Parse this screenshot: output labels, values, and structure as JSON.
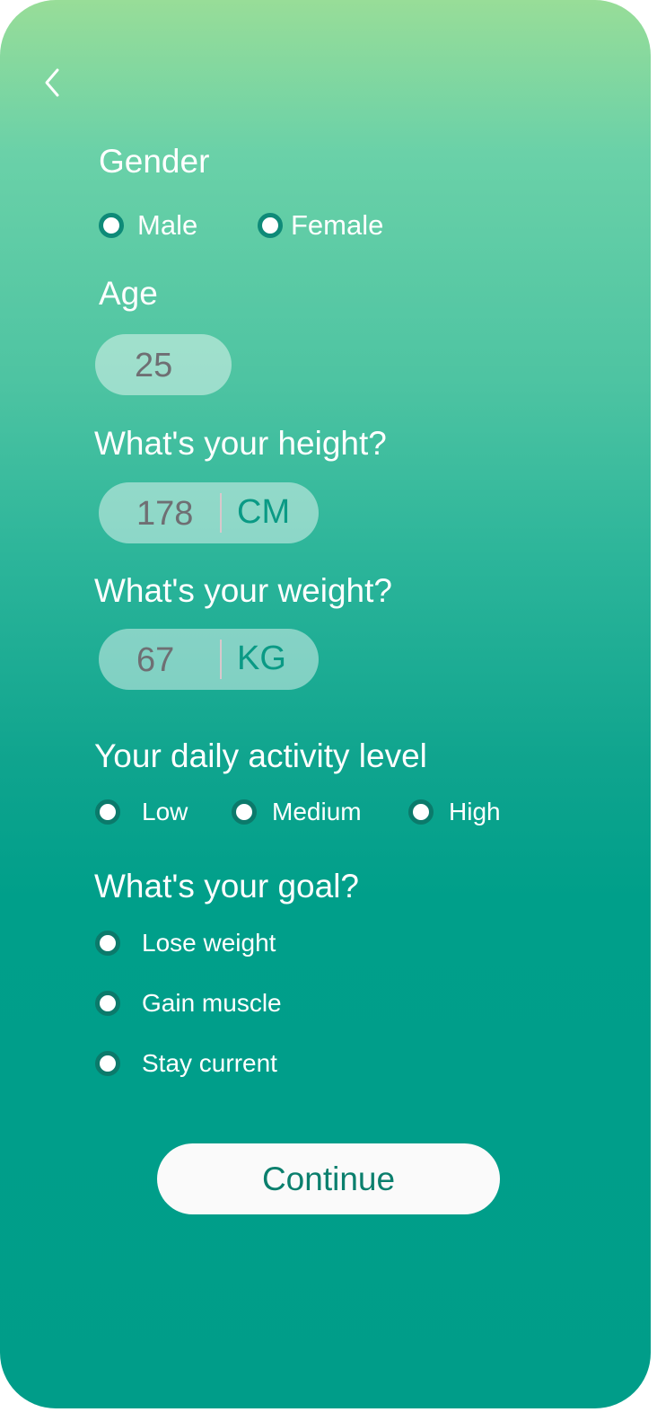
{
  "header": {
    "back_icon": "chevron-left-icon"
  },
  "gender": {
    "label": "Gender",
    "options": [
      "Male",
      "Female"
    ]
  },
  "age": {
    "label": "Age",
    "value": "25"
  },
  "height": {
    "label": "What's your height?",
    "value": "178",
    "unit": "CM"
  },
  "weight": {
    "label": "What's your weight?",
    "value": "67",
    "unit": "KG"
  },
  "activity": {
    "label": "Your daily activity level",
    "options": [
      "Low",
      "Medium",
      "High"
    ]
  },
  "goal": {
    "label": "What's your goal?",
    "options": [
      "Lose weight",
      "Gain muscle",
      "Stay current"
    ]
  },
  "continue_label": "Continue",
  "colors": {
    "gradient_top": "#98dd98",
    "gradient_bottom": "#009d89",
    "radio_ring": "#0b7a6b",
    "accent": "#0b7f6d"
  }
}
